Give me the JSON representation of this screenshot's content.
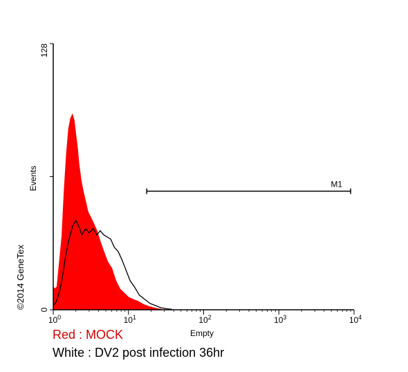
{
  "chart_data": {
    "type": "area",
    "title": "",
    "xlabel": "Empty",
    "ylabel": "Events",
    "x_scale": "log",
    "xlim": [
      1,
      10000
    ],
    "ylim": [
      0,
      128
    ],
    "x_ticks": [
      {
        "value": 1,
        "base": "10",
        "exp": "0"
      },
      {
        "value": 10,
        "base": "10",
        "exp": "1"
      },
      {
        "value": 100,
        "base": "10",
        "exp": "2"
      },
      {
        "value": 1000,
        "base": "10",
        "exp": "3"
      },
      {
        "value": 10000,
        "base": "10",
        "exp": "4"
      }
    ],
    "y_ticks": [
      {
        "value": 0,
        "label": "0"
      },
      {
        "value": 128,
        "label": "128"
      }
    ],
    "grid": false,
    "gate": {
      "label": "M1",
      "x_start": 17.5,
      "x_end": 9000,
      "y": 57
    },
    "series": [
      {
        "name": "MOCK",
        "style": "filled",
        "color": "#ff0000",
        "x": [
          1.0,
          1.05,
          1.12,
          1.2,
          1.3,
          1.4,
          1.5,
          1.6,
          1.7,
          1.8,
          1.9,
          2.0,
          2.1,
          2.2,
          2.35,
          2.5,
          2.7,
          2.9,
          3.1,
          3.4,
          3.8,
          4.2,
          4.7,
          5.3,
          6.0,
          6.8,
          7.7,
          8.8,
          10.0,
          11.5,
          13.5,
          16.0,
          19.0,
          23.0,
          28.0
        ],
        "y": [
          11,
          10,
          11,
          22,
          35,
          58,
          75,
          87,
          92,
          94,
          91,
          84,
          78,
          70,
          62,
          57,
          52,
          47,
          45,
          42,
          38,
          33,
          28,
          23,
          20,
          14,
          10,
          8,
          6,
          5,
          4,
          2.5,
          1.5,
          0.7,
          0.2
        ]
      },
      {
        "name": "DV2 post infection 36hr",
        "style": "outline",
        "color": "#000000",
        "x": [
          1.0,
          1.05,
          1.1,
          1.2,
          1.3,
          1.45,
          1.6,
          1.8,
          2.0,
          2.2,
          2.4,
          2.7,
          3.0,
          3.4,
          3.8,
          4.2,
          4.7,
          5.2,
          5.8,
          6.5,
          7.3,
          8.2,
          9.3,
          10.5,
          12.0,
          14.0,
          16.5,
          19.5,
          23.0,
          27.0,
          32.0,
          38.0
        ],
        "y": [
          2,
          3,
          4,
          8,
          14,
          25,
          33,
          40,
          43,
          40,
          36,
          39,
          37,
          39,
          36,
          38,
          36,
          35,
          34,
          30,
          28,
          24,
          19,
          14,
          11,
          7,
          5,
          3,
          2,
          1,
          0.5,
          0.2
        ]
      }
    ],
    "annotations": [
      {
        "text": "Red : MOCK",
        "color": "#d00000"
      },
      {
        "text": "White : DV2 post infection 36hr",
        "color": "#000000"
      }
    ]
  },
  "watermark": "©2014 GeneTex"
}
